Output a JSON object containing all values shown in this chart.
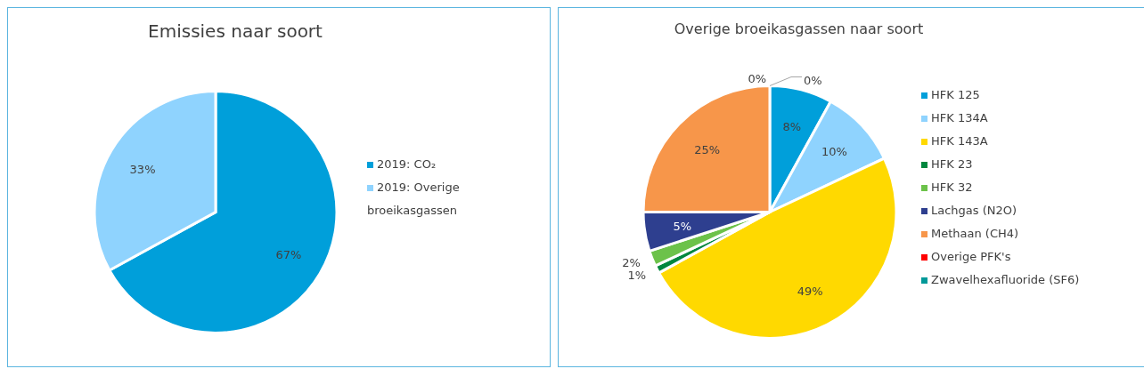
{
  "chart_data": [
    {
      "type": "pie",
      "title": "Emissies naar soort",
      "categories": [
        "2019: CO₂",
        "2019: Overige broeikasgassen"
      ],
      "values": [
        67,
        33
      ],
      "colors": [
        "#009fda",
        "#8fd3fe"
      ],
      "value_labels": [
        "67%",
        "33%"
      ],
      "legend": "right"
    },
    {
      "type": "pie",
      "title": "Overige broeikasgassen naar soort",
      "categories": [
        "HFK 125",
        "HFK 134A",
        "HFK 143A",
        "HFK 23",
        "HFK 32",
        "Lachgas (N2O)",
        "Methaan (CH4)",
        "Overige PFK's",
        "Zwavelhexafluoride (SF6)"
      ],
      "values": [
        8,
        10,
        49,
        1,
        2,
        5,
        25,
        0,
        0
      ],
      "colors": [
        "#009fda",
        "#8fd3fe",
        "#ffd900",
        "#00873e",
        "#6cc24a",
        "#2e3f8f",
        "#f7964a",
        "#ff0000",
        "#009999"
      ],
      "value_labels": [
        "8%",
        "10%",
        "49%",
        "1%",
        "2%",
        "5%",
        "25%",
        "0%",
        "0%"
      ],
      "legend": "right"
    }
  ]
}
